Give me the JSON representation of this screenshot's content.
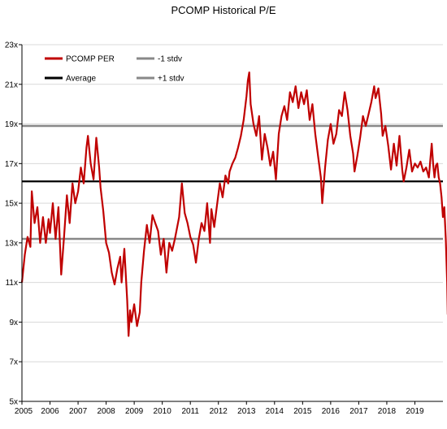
{
  "chart_data": {
    "type": "line",
    "title": "PCOMP Historical P/E",
    "xlabel": "",
    "ylabel": "",
    "xlim": [
      2005,
      2020
    ],
    "ylim": [
      5,
      23
    ],
    "x_ticks": [
      2005,
      2006,
      2007,
      2008,
      2009,
      2010,
      2011,
      2012,
      2013,
      2014,
      2015,
      2016,
      2017,
      2018,
      2019
    ],
    "x_tick_labels": [
      "2005",
      "2006",
      "2007",
      "2008",
      "2009",
      "2010",
      "2011",
      "2012",
      "2013",
      "2014",
      "2015",
      "2016",
      "2017",
      "2018",
      "2019"
    ],
    "y_ticks": [
      5,
      7,
      9,
      11,
      13,
      15,
      17,
      19,
      21,
      23
    ],
    "y_tick_labels": [
      "5x",
      "7x",
      "9x",
      "11x",
      "13x",
      "15x",
      "17x",
      "19x",
      "21x",
      "23x"
    ],
    "grid": "horizontal",
    "legend_position": "top-left",
    "series": [
      {
        "name": "PCOMP PER",
        "color": "#c00000",
        "points": [
          [
            2005.0,
            11.0
          ],
          [
            2005.1,
            12.4
          ],
          [
            2005.2,
            13.3
          ],
          [
            2005.3,
            12.8
          ],
          [
            2005.35,
            15.6
          ],
          [
            2005.45,
            14.0
          ],
          [
            2005.55,
            14.8
          ],
          [
            2005.65,
            13.0
          ],
          [
            2005.75,
            14.3
          ],
          [
            2005.85,
            13.0
          ],
          [
            2005.95,
            14.2
          ],
          [
            2006.0,
            13.5
          ],
          [
            2006.1,
            15.0
          ],
          [
            2006.2,
            13.2
          ],
          [
            2006.3,
            14.8
          ],
          [
            2006.4,
            11.4
          ],
          [
            2006.5,
            13.3
          ],
          [
            2006.6,
            15.4
          ],
          [
            2006.7,
            14.0
          ],
          [
            2006.8,
            16.0
          ],
          [
            2006.9,
            15.0
          ],
          [
            2007.0,
            15.6
          ],
          [
            2007.1,
            16.8
          ],
          [
            2007.2,
            16.0
          ],
          [
            2007.3,
            17.8
          ],
          [
            2007.35,
            18.4
          ],
          [
            2007.45,
            17.0
          ],
          [
            2007.55,
            16.2
          ],
          [
            2007.65,
            18.3
          ],
          [
            2007.75,
            16.8
          ],
          [
            2007.8,
            15.8
          ],
          [
            2007.9,
            14.6
          ],
          [
            2008.0,
            13.0
          ],
          [
            2008.1,
            12.5
          ],
          [
            2008.2,
            11.5
          ],
          [
            2008.3,
            10.9
          ],
          [
            2008.4,
            11.7
          ],
          [
            2008.5,
            12.3
          ],
          [
            2008.55,
            11.0
          ],
          [
            2008.65,
            12.7
          ],
          [
            2008.75,
            10.1
          ],
          [
            2008.8,
            8.3
          ],
          [
            2008.85,
            9.6
          ],
          [
            2008.9,
            9.0
          ],
          [
            2009.0,
            9.9
          ],
          [
            2009.1,
            8.8
          ],
          [
            2009.2,
            9.5
          ],
          [
            2009.25,
            11.0
          ],
          [
            2009.35,
            12.6
          ],
          [
            2009.45,
            13.9
          ],
          [
            2009.55,
            13.0
          ],
          [
            2009.65,
            14.4
          ],
          [
            2009.75,
            14.0
          ],
          [
            2009.85,
            13.6
          ],
          [
            2009.95,
            12.4
          ],
          [
            2010.05,
            13.2
          ],
          [
            2010.15,
            11.5
          ],
          [
            2010.25,
            13.0
          ],
          [
            2010.35,
            12.6
          ],
          [
            2010.45,
            13.2
          ],
          [
            2010.6,
            14.3
          ],
          [
            2010.7,
            16.0
          ],
          [
            2010.8,
            14.5
          ],
          [
            2010.9,
            14.0
          ],
          [
            2011.0,
            13.3
          ],
          [
            2011.1,
            12.9
          ],
          [
            2011.2,
            12.0
          ],
          [
            2011.3,
            13.2
          ],
          [
            2011.4,
            14.0
          ],
          [
            2011.5,
            13.6
          ],
          [
            2011.6,
            15.0
          ],
          [
            2011.7,
            13.0
          ],
          [
            2011.75,
            14.7
          ],
          [
            2011.85,
            13.8
          ],
          [
            2011.95,
            14.9
          ],
          [
            2012.05,
            16.0
          ],
          [
            2012.15,
            15.3
          ],
          [
            2012.25,
            16.4
          ],
          [
            2012.35,
            16.0
          ],
          [
            2012.4,
            16.6
          ],
          [
            2012.5,
            17.0
          ],
          [
            2012.6,
            17.3
          ],
          [
            2012.7,
            17.8
          ],
          [
            2012.8,
            18.4
          ],
          [
            2012.9,
            19.2
          ],
          [
            2013.0,
            20.4
          ],
          [
            2013.05,
            21.2
          ],
          [
            2013.1,
            21.6
          ],
          [
            2013.15,
            20.0
          ],
          [
            2013.25,
            19.0
          ],
          [
            2013.35,
            18.4
          ],
          [
            2013.45,
            19.4
          ],
          [
            2013.55,
            17.2
          ],
          [
            2013.65,
            18.5
          ],
          [
            2013.75,
            17.8
          ],
          [
            2013.85,
            16.9
          ],
          [
            2013.95,
            17.6
          ],
          [
            2014.05,
            16.2
          ],
          [
            2014.15,
            18.5
          ],
          [
            2014.25,
            19.4
          ],
          [
            2014.35,
            19.9
          ],
          [
            2014.45,
            19.2
          ],
          [
            2014.55,
            20.6
          ],
          [
            2014.65,
            20.1
          ],
          [
            2014.75,
            20.9
          ],
          [
            2014.85,
            19.8
          ],
          [
            2014.95,
            20.6
          ],
          [
            2015.05,
            20.0
          ],
          [
            2015.15,
            20.7
          ],
          [
            2015.25,
            19.2
          ],
          [
            2015.35,
            20.0
          ],
          [
            2015.45,
            18.5
          ],
          [
            2015.55,
            17.4
          ],
          [
            2015.65,
            16.3
          ],
          [
            2015.7,
            15.0
          ],
          [
            2015.8,
            16.8
          ],
          [
            2015.9,
            18.2
          ],
          [
            2016.0,
            19.0
          ],
          [
            2016.1,
            18.0
          ],
          [
            2016.2,
            18.5
          ],
          [
            2016.3,
            19.7
          ],
          [
            2016.4,
            19.4
          ],
          [
            2016.5,
            20.6
          ],
          [
            2016.6,
            19.7
          ],
          [
            2016.7,
            18.4
          ],
          [
            2016.8,
            17.5
          ],
          [
            2016.85,
            16.6
          ],
          [
            2016.95,
            17.4
          ],
          [
            2017.05,
            18.3
          ],
          [
            2017.15,
            19.4
          ],
          [
            2017.25,
            18.9
          ],
          [
            2017.35,
            19.5
          ],
          [
            2017.45,
            20.1
          ],
          [
            2017.55,
            20.9
          ],
          [
            2017.6,
            20.3
          ],
          [
            2017.7,
            20.8
          ],
          [
            2017.8,
            19.5
          ],
          [
            2017.85,
            18.4
          ],
          [
            2017.95,
            18.9
          ],
          [
            2018.05,
            17.9
          ],
          [
            2018.15,
            16.7
          ],
          [
            2018.25,
            18.0
          ],
          [
            2018.35,
            16.9
          ],
          [
            2018.45,
            18.4
          ],
          [
            2018.55,
            16.7
          ],
          [
            2018.6,
            16.1
          ],
          [
            2018.7,
            16.8
          ],
          [
            2018.8,
            17.7
          ],
          [
            2018.9,
            16.6
          ],
          [
            2019.0,
            17.0
          ],
          [
            2019.1,
            16.8
          ],
          [
            2019.2,
            17.1
          ],
          [
            2019.3,
            16.6
          ],
          [
            2019.4,
            16.8
          ],
          [
            2019.5,
            16.3
          ],
          [
            2019.55,
            17.2
          ],
          [
            2019.6,
            18.0
          ],
          [
            2019.65,
            17.0
          ],
          [
            2019.7,
            16.3
          ],
          [
            2019.75,
            16.9
          ],
          [
            2019.8,
            17.0
          ],
          [
            2019.85,
            16.3
          ],
          [
            2019.9,
            16.0
          ],
          [
            2019.95,
            15.3
          ],
          [
            2020.0,
            14.3
          ],
          [
            2020.05,
            14.8
          ],
          [
            2020.1,
            13.2
          ],
          [
            2020.15,
            11.0
          ],
          [
            2020.17,
            9.4
          ],
          [
            2020.19,
            11.2
          ]
        ]
      },
      {
        "name": "Average",
        "color": "#000000",
        "value": 16.1
      },
      {
        "name": "-1 stdv",
        "color": "#888888",
        "value": 13.2
      },
      {
        "name": "+1 stdv",
        "color": "#888888",
        "value": 18.9
      }
    ]
  }
}
